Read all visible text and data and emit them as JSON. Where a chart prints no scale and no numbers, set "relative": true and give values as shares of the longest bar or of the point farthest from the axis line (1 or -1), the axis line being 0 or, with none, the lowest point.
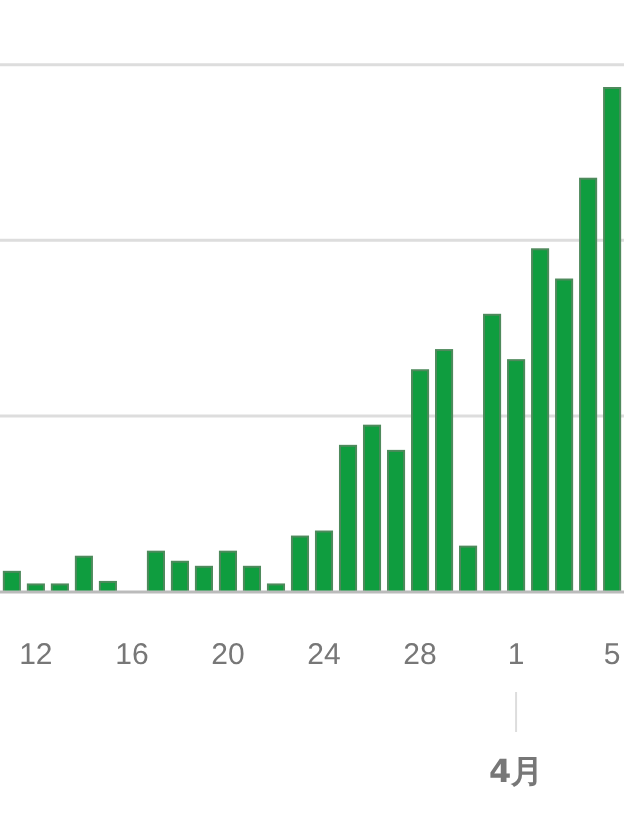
{
  "chart_data": {
    "type": "bar",
    "relative": true,
    "color": "#0f9d3f",
    "ref_lines": [
      {
        "axis": "y",
        "value": 0.349,
        "color": "#dddddd"
      },
      {
        "axis": "y",
        "value": 0.698,
        "color": "#dddddd"
      },
      {
        "axis": "y",
        "value": 1.046,
        "color": "#dddddd"
      }
    ],
    "categories": [
      null,
      "12",
      null,
      null,
      null,
      "16",
      null,
      null,
      null,
      "20",
      null,
      null,
      null,
      "24",
      null,
      null,
      null,
      "28",
      null,
      null,
      null,
      "1",
      null,
      null,
      null,
      "5"
    ],
    "values": [
      0.04,
      0.015,
      0.015,
      0.07,
      0.02,
      0,
      0.08,
      0.06,
      0.05,
      0.08,
      0.05,
      0.015,
      0.11,
      0.12,
      0.29,
      0.33,
      0.28,
      0.44,
      0.48,
      0.09,
      0.55,
      0.46,
      0.68,
      0.62,
      0.82,
      1
    ],
    "annotations": [
      {
        "text": "4月",
        "x": "1"
      }
    ]
  }
}
